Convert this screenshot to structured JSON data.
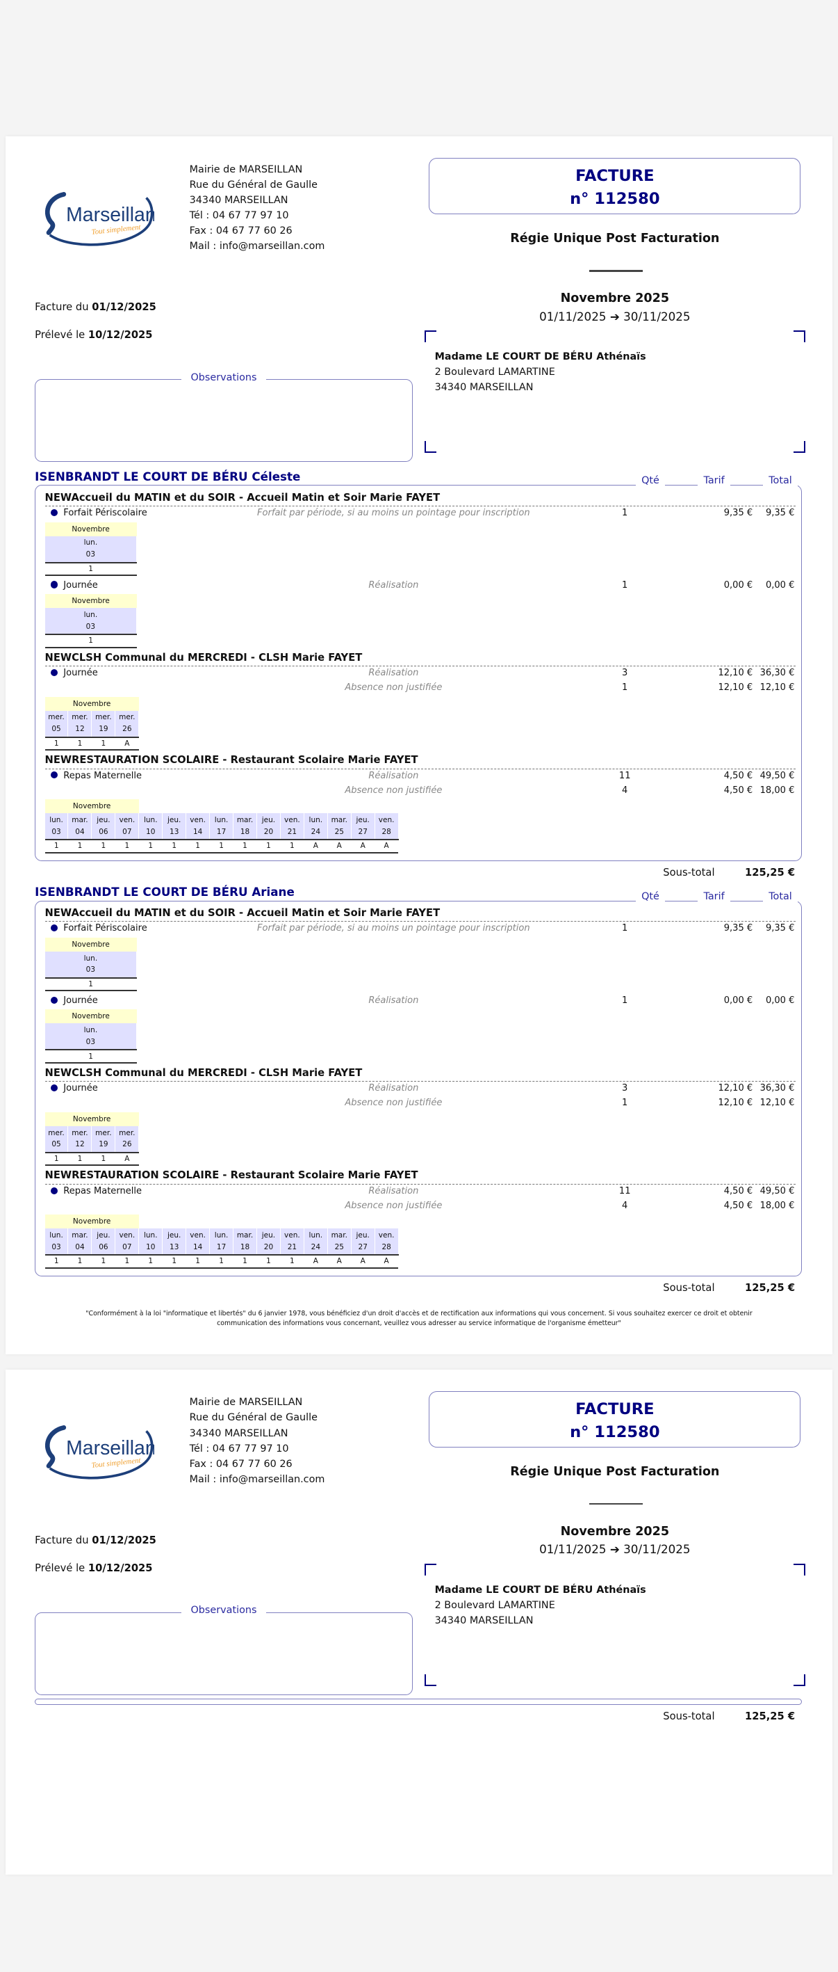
{
  "invoice": {
    "org_lines": [
      "Mairie de MARSEILLAN",
      "Rue du Général de Gaulle",
      "34340 MARSEILLAN",
      "Tél : 04 67 77 97 10",
      "Fax : 04 67 77 60 26",
      "Mail : info@marseillan.com"
    ],
    "logo": {
      "name": "Marseillan",
      "tagline": "Tout simplement"
    },
    "title": "FACTURE",
    "number": "n° 112580",
    "regie": "Régie Unique Post Facturation",
    "period_title": "Novembre 2025",
    "period_start": "01/11/2025",
    "period_arrow": "➔",
    "period_end": "30/11/2025",
    "invoice_date_label": "Facture du",
    "invoice_date": "01/12/2025",
    "debit_date_label": "Prélevé le",
    "debit_date": "10/12/2025",
    "customer_lines": [
      "Madame LE COURT DE BÉRU Athénaïs",
      "2 Boulevard LAMARTINE",
      "34340 MARSEILLAN"
    ],
    "observations_label": "Observations"
  },
  "columns": {
    "qty": "Qté",
    "tarif": "Tarif",
    "total": "Total"
  },
  "subtotal_label": "Sous-total",
  "children": [
    {
      "name": "ISENBRANDT LE COURT DE BÉRU Céleste",
      "subtotal": "125,25 €",
      "sections": [
        {
          "title": "NEWAccueil du MATIN et du SOIR - Accueil Matin et Soir Marie FAYET",
          "items": [
            {
              "label": "Forfait Périscolaire",
              "lines": [
                {
                  "desc": "Forfait par période, si au moins un pointage pour inscription",
                  "qty": "1",
                  "tarif": "9,35 €",
                  "total": "9,35 €"
                }
              ],
              "calendar": {
                "month": "Novembre",
                "days": [
                  {
                    "dow": "lun.",
                    "day": "03",
                    "val": "1"
                  }
                ]
              }
            },
            {
              "label": "Journée",
              "lines": [
                {
                  "desc": "Réalisation",
                  "qty": "1",
                  "tarif": "0,00 €",
                  "total": "0,00 €"
                }
              ],
              "calendar": {
                "month": "Novembre",
                "days": [
                  {
                    "dow": "lun.",
                    "day": "03",
                    "val": "1"
                  }
                ]
              }
            }
          ]
        },
        {
          "title": "NEWCLSH Communal du MERCREDI - CLSH Marie FAYET",
          "items": [
            {
              "label": "Journée",
              "lines": [
                {
                  "desc": "Réalisation",
                  "qty": "3",
                  "tarif": "12,10 €",
                  "total": "36,30 €"
                },
                {
                  "desc": "Absence non justifiée",
                  "qty": "1",
                  "tarif": "12,10 €",
                  "total": "12,10 €"
                }
              ],
              "calendar": {
                "month": "Novembre",
                "days": [
                  {
                    "dow": "mer.",
                    "day": "05",
                    "val": "1"
                  },
                  {
                    "dow": "mer.",
                    "day": "12",
                    "val": "1"
                  },
                  {
                    "dow": "mer.",
                    "day": "19",
                    "val": "1"
                  },
                  {
                    "dow": "mer.",
                    "day": "26",
                    "val": "A"
                  }
                ]
              }
            }
          ]
        },
        {
          "title": "NEWRESTAURATION SCOLAIRE - Restaurant Scolaire Marie FAYET",
          "items": [
            {
              "label": "Repas Maternelle",
              "lines": [
                {
                  "desc": "Réalisation",
                  "qty": "11",
                  "tarif": "4,50 €",
                  "total": "49,50 €"
                },
                {
                  "desc": "Absence non justifiée",
                  "qty": "4",
                  "tarif": "4,50 €",
                  "total": "18,00 €"
                }
              ],
              "calendar": {
                "month": "Novembre",
                "days": [
                  {
                    "dow": "lun.",
                    "day": "03",
                    "val": "1"
                  },
                  {
                    "dow": "mar.",
                    "day": "04",
                    "val": "1"
                  },
                  {
                    "dow": "jeu.",
                    "day": "06",
                    "val": "1"
                  },
                  {
                    "dow": "ven.",
                    "day": "07",
                    "val": "1"
                  },
                  {
                    "dow": "lun.",
                    "day": "10",
                    "val": "1"
                  },
                  {
                    "dow": "jeu.",
                    "day": "13",
                    "val": "1"
                  },
                  {
                    "dow": "ven.",
                    "day": "14",
                    "val": "1"
                  },
                  {
                    "dow": "lun.",
                    "day": "17",
                    "val": "1"
                  },
                  {
                    "dow": "mar.",
                    "day": "18",
                    "val": "1"
                  },
                  {
                    "dow": "jeu.",
                    "day": "20",
                    "val": "1"
                  },
                  {
                    "dow": "ven.",
                    "day": "21",
                    "val": "1"
                  },
                  {
                    "dow": "lun.",
                    "day": "24",
                    "val": "A"
                  },
                  {
                    "dow": "mar.",
                    "day": "25",
                    "val": "A"
                  },
                  {
                    "dow": "jeu.",
                    "day": "27",
                    "val": "A"
                  },
                  {
                    "dow": "ven.",
                    "day": "28",
                    "val": "A"
                  }
                ]
              }
            }
          ]
        }
      ]
    },
    {
      "name": "ISENBRANDT LE COURT DE BÉRU Ariane",
      "subtotal": "125,25 €",
      "sections": [
        {
          "title": "NEWAccueil du MATIN et du SOIR - Accueil Matin et Soir Marie FAYET",
          "items": [
            {
              "label": "Forfait Périscolaire",
              "lines": [
                {
                  "desc": "Forfait par période, si au moins un pointage pour inscription",
                  "qty": "1",
                  "tarif": "9,35 €",
                  "total": "9,35 €"
                }
              ],
              "calendar": {
                "month": "Novembre",
                "days": [
                  {
                    "dow": "lun.",
                    "day": "03",
                    "val": "1"
                  }
                ]
              }
            },
            {
              "label": "Journée",
              "lines": [
                {
                  "desc": "Réalisation",
                  "qty": "1",
                  "tarif": "0,00 €",
                  "total": "0,00 €"
                }
              ],
              "calendar": {
                "month": "Novembre",
                "days": [
                  {
                    "dow": "lun.",
                    "day": "03",
                    "val": "1"
                  }
                ]
              }
            }
          ]
        },
        {
          "title": "NEWCLSH Communal du MERCREDI - CLSH Marie FAYET",
          "items": [
            {
              "label": "Journée",
              "lines": [
                {
                  "desc": "Réalisation",
                  "qty": "3",
                  "tarif": "12,10 €",
                  "total": "36,30 €"
                },
                {
                  "desc": "Absence non justifiée",
                  "qty": "1",
                  "tarif": "12,10 €",
                  "total": "12,10 €"
                }
              ],
              "calendar": {
                "month": "Novembre",
                "days": [
                  {
                    "dow": "mer.",
                    "day": "05",
                    "val": "1"
                  },
                  {
                    "dow": "mer.",
                    "day": "12",
                    "val": "1"
                  },
                  {
                    "dow": "mer.",
                    "day": "19",
                    "val": "1"
                  },
                  {
                    "dow": "mer.",
                    "day": "26",
                    "val": "A"
                  }
                ]
              }
            }
          ]
        },
        {
          "title": "NEWRESTAURATION SCOLAIRE - Restaurant Scolaire Marie FAYET",
          "items": [
            {
              "label": "Repas Maternelle",
              "lines": [
                {
                  "desc": "Réalisation",
                  "qty": "11",
                  "tarif": "4,50 €",
                  "total": "49,50 €"
                },
                {
                  "desc": "Absence non justifiée",
                  "qty": "4",
                  "tarif": "4,50 €",
                  "total": "18,00 €"
                }
              ],
              "calendar": {
                "month": "Novembre",
                "days": [
                  {
                    "dow": "lun.",
                    "day": "03",
                    "val": "1"
                  },
                  {
                    "dow": "mar.",
                    "day": "04",
                    "val": "1"
                  },
                  {
                    "dow": "jeu.",
                    "day": "06",
                    "val": "1"
                  },
                  {
                    "dow": "ven.",
                    "day": "07",
                    "val": "1"
                  },
                  {
                    "dow": "lun.",
                    "day": "10",
                    "val": "1"
                  },
                  {
                    "dow": "jeu.",
                    "day": "13",
                    "val": "1"
                  },
                  {
                    "dow": "ven.",
                    "day": "14",
                    "val": "1"
                  },
                  {
                    "dow": "lun.",
                    "day": "17",
                    "val": "1"
                  },
                  {
                    "dow": "mar.",
                    "day": "18",
                    "val": "1"
                  },
                  {
                    "dow": "jeu.",
                    "day": "20",
                    "val": "1"
                  },
                  {
                    "dow": "ven.",
                    "day": "21",
                    "val": "1"
                  },
                  {
                    "dow": "lun.",
                    "day": "24",
                    "val": "A"
                  },
                  {
                    "dow": "mar.",
                    "day": "25",
                    "val": "A"
                  },
                  {
                    "dow": "jeu.",
                    "day": "27",
                    "val": "A"
                  },
                  {
                    "dow": "ven.",
                    "day": "28",
                    "val": "A"
                  }
                ]
              }
            }
          ]
        }
      ]
    }
  ],
  "page2_subtotal": "125,25 €",
  "legal_text": "\"Conformément à la loi \"informatique et libertés\" du 6 janvier 1978, vous bénéficiez d'un droit d'accès et de rectification aux informations qui vous concernent. Si vous souhaitez exercer ce droit et obtenir communication des informations vous concernant, veuillez vous adresser au service informatique de l'organisme émetteur\"",
  "colors": {
    "navy": "#000080",
    "border": "#8080c0",
    "month_bg": "#ffffd0",
    "day_bg": "#e0e0ff",
    "logo_orange": "#f0a030"
  }
}
